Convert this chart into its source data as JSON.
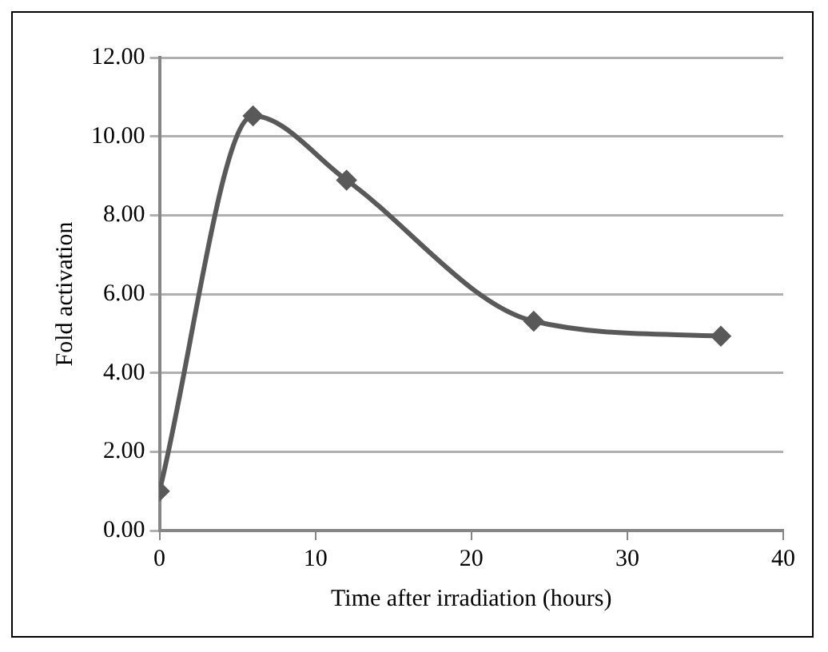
{
  "chart_data": {
    "type": "line",
    "xlabel": "Time after irradiation (hours)",
    "ylabel": "Fold activation",
    "x": [
      0,
      6,
      12,
      24,
      36
    ],
    "series": [
      {
        "color": "#595959",
        "values": [
          1.0,
          10.52,
          8.89,
          5.31,
          4.93
        ]
      }
    ],
    "xlim": [
      0,
      40
    ],
    "xticks": [
      0,
      10,
      20,
      30,
      40
    ],
    "ylim": [
      0,
      12
    ],
    "yticks": [
      {
        "value": 0,
        "label": "0.00"
      },
      {
        "value": 2,
        "label": "2.00"
      },
      {
        "value": 4,
        "label": "4.00"
      },
      {
        "value": 6,
        "label": "6.00"
      },
      {
        "value": 8,
        "label": "8.00"
      },
      {
        "value": 10,
        "label": "10.00"
      },
      {
        "value": 12,
        "label": "12.00"
      }
    ],
    "grid": "y",
    "legend": false,
    "marker": "diamond",
    "line_style": "solid"
  }
}
